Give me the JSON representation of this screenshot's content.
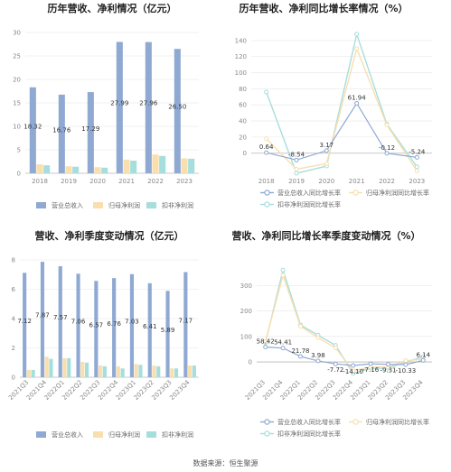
{
  "source": "数据来源：恒生聚源",
  "colors": {
    "revenue": "#8fa9d3",
    "net_parent": "#f9dfae",
    "net_deducted": "#a6dedd"
  },
  "chart_data": [
    {
      "id": "annual-values",
      "type": "bar",
      "title": "历年营收、净利情况（亿元）",
      "categories": [
        "2018",
        "2019",
        "2020",
        "2021",
        "2022",
        "2023"
      ],
      "ylim": [
        0,
        30
      ],
      "yticks": [
        0,
        5,
        10,
        15,
        20,
        25,
        30
      ],
      "series": [
        {
          "name": "营业总收入",
          "values": [
            18.32,
            16.76,
            17.29,
            27.99,
            27.96,
            26.5
          ],
          "labels": [
            "18.32",
            "16.76",
            "17.29",
            "27.99",
            "27.96",
            "26.50"
          ]
        },
        {
          "name": "归母净利润",
          "values": [
            1.9,
            1.5,
            1.3,
            2.9,
            4.0,
            3.2
          ]
        },
        {
          "name": "扣非净利润",
          "values": [
            1.7,
            1.4,
            1.2,
            2.7,
            3.7,
            3.1
          ]
        }
      ],
      "legend": "bottom"
    },
    {
      "id": "annual-growth",
      "type": "line",
      "title": "历年营收、净利同比增长率情况（%）",
      "categories": [
        "2018",
        "2019",
        "2020",
        "2021",
        "2022",
        "2023"
      ],
      "ylim": [
        -25,
        150
      ],
      "yticks": [
        0,
        20,
        40,
        60,
        80,
        100,
        120,
        140
      ],
      "series": [
        {
          "name": "营业总收入同比增长率",
          "values": [
            0.64,
            -8.54,
            3.17,
            61.94,
            -0.12,
            -5.24
          ],
          "labels": [
            "0.64",
            "-8.54",
            "3.17",
            "61.94",
            "-0.12",
            "-5.24"
          ]
        },
        {
          "name": "归母净利润同比增长率",
          "values": [
            18,
            -20,
            -13,
            130,
            35,
            -22
          ]
        },
        {
          "name": "扣非净利润同比增长率",
          "values": [
            76,
            -25,
            -16,
            148,
            36,
            -17
          ]
        }
      ],
      "legend": "bottom"
    },
    {
      "id": "quarterly-values",
      "type": "bar",
      "title": "营收、净利季度变动情况（亿元）",
      "categories": [
        "2021Q3",
        "2021Q4",
        "2022Q1",
        "2022Q2",
        "2022Q3",
        "2022Q4",
        "2023Q1",
        "2023Q2",
        "2023Q3",
        "2023Q4"
      ],
      "ylim": [
        0,
        8
      ],
      "yticks": [
        0,
        2,
        4,
        6,
        8
      ],
      "series": [
        {
          "name": "营业总收入",
          "values": [
            7.12,
            7.87,
            7.57,
            7.06,
            6.57,
            6.76,
            7.03,
            6.41,
            5.89,
            7.17
          ],
          "labels": [
            "7.12",
            "7.87",
            "7.57",
            "7.06",
            "6.57",
            "6.76",
            "7.03",
            "6.41",
            "5.89",
            "7.17"
          ]
        },
        {
          "name": "归母净利润",
          "values": [
            0.5,
            1.4,
            1.3,
            1.05,
            0.8,
            0.75,
            0.9,
            0.8,
            0.6,
            0.8
          ]
        },
        {
          "name": "扣非净利润",
          "values": [
            0.5,
            1.25,
            1.3,
            1.0,
            0.75,
            0.6,
            0.85,
            0.75,
            0.6,
            0.8
          ]
        }
      ],
      "legend": "bottom"
    },
    {
      "id": "quarterly-growth",
      "type": "line",
      "title": "营收、净利同比增长率季度变动情况（%）",
      "categories": [
        "2021Q3",
        "2021Q4",
        "2022Q1",
        "2022Q2",
        "2022Q3",
        "2022Q4",
        "2023Q1",
        "2023Q2",
        "2023Q3",
        "2023Q4"
      ],
      "ylim": [
        -60,
        400
      ],
      "yticks": [
        0,
        100,
        200,
        300
      ],
      "series": [
        {
          "name": "营业总收入同比增长率",
          "values": [
            58.42,
            54.41,
            21.78,
            3.98,
            -7.72,
            -14.1,
            -7.16,
            -9.31,
            -10.33,
            6.14
          ],
          "labels": [
            "58.42",
            "54.41",
            "21.78",
            "3.98",
            "-7.72",
            "-14.10",
            "-7.16",
            "-9.31",
            "-10.33",
            "6.14"
          ]
        },
        {
          "name": "归母净利润同比增长率",
          "values": [
            80,
            340,
            140,
            95,
            55,
            -35,
            -20,
            -20,
            5,
            10
          ]
        },
        {
          "name": "扣非净利润同比增长率",
          "values": [
            75,
            360,
            145,
            105,
            65,
            -45,
            -25,
            -25,
            0,
            20
          ]
        }
      ],
      "legend": "bottom"
    }
  ]
}
